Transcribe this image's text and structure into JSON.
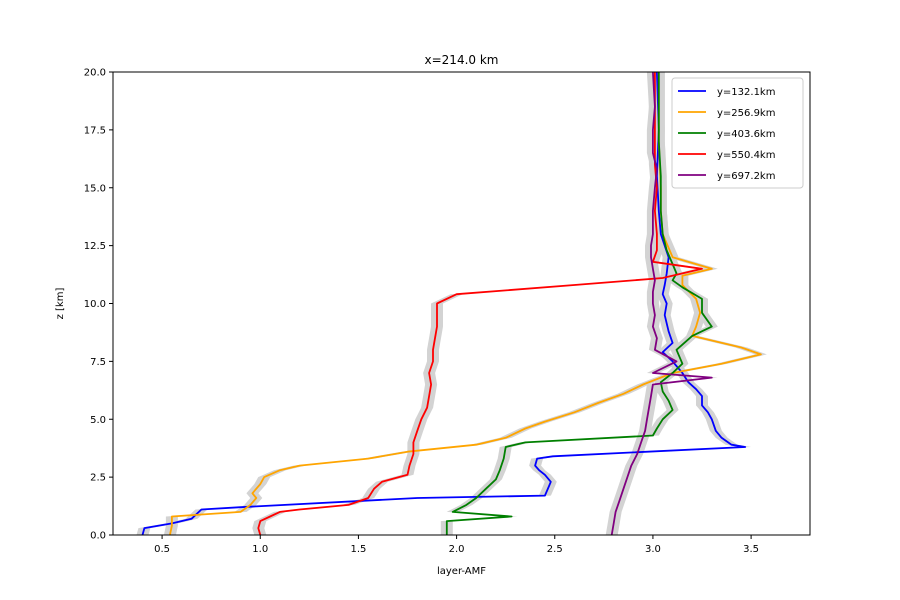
{
  "chart_data": {
    "type": "line",
    "title": "x=214.0 km",
    "xlabel": "layer-AMF",
    "ylabel": "z [km]",
    "xlim": [
      0.25,
      3.8
    ],
    "ylim": [
      0,
      20
    ],
    "xticks": [
      "0.5",
      "1.0",
      "1.5",
      "2.0",
      "2.5",
      "3.0",
      "3.5"
    ],
    "yticks": [
      "0.0",
      "2.5",
      "5.0",
      "7.5",
      "10.0",
      "12.5",
      "15.0",
      "17.5",
      "20.0"
    ],
    "legend_position": "top-right",
    "uncertainty_band_color": "#d3d3d3",
    "series": [
      {
        "name": "y=132.1km",
        "color": "#0000ff",
        "points": [
          [
            0.4,
            0.0
          ],
          [
            0.41,
            0.3
          ],
          [
            0.55,
            0.5
          ],
          [
            0.65,
            0.7
          ],
          [
            0.7,
            1.1
          ],
          [
            0.9,
            1.2
          ],
          [
            1.8,
            1.6
          ],
          [
            2.45,
            1.7
          ],
          [
            2.47,
            2.1
          ],
          [
            2.48,
            2.3
          ],
          [
            2.45,
            2.6
          ],
          [
            2.42,
            2.8
          ],
          [
            2.4,
            3.0
          ],
          [
            2.41,
            3.3
          ],
          [
            2.49,
            3.4
          ],
          [
            3.47,
            3.8
          ],
          [
            3.4,
            3.9
          ],
          [
            3.35,
            4.2
          ],
          [
            3.32,
            4.5
          ],
          [
            3.3,
            5.0
          ],
          [
            3.28,
            5.3
          ],
          [
            3.25,
            5.6
          ],
          [
            3.25,
            6.0
          ],
          [
            3.22,
            6.3
          ],
          [
            3.18,
            6.6
          ],
          [
            3.15,
            7.0
          ],
          [
            3.1,
            7.5
          ],
          [
            3.05,
            7.9
          ],
          [
            3.1,
            8.3
          ],
          [
            3.08,
            8.8
          ],
          [
            3.06,
            9.5
          ],
          [
            3.07,
            10.0
          ],
          [
            3.05,
            10.4
          ],
          [
            3.06,
            10.8
          ],
          [
            3.07,
            11.3
          ],
          [
            3.08,
            12.0
          ],
          [
            3.04,
            13.0
          ],
          [
            3.03,
            14.0
          ],
          [
            3.02,
            15.5
          ],
          [
            3.03,
            17.5
          ],
          [
            3.02,
            20.0
          ]
        ]
      },
      {
        "name": "y=256.9km",
        "color": "#ffa500",
        "points": [
          [
            0.54,
            0.0
          ],
          [
            0.55,
            0.4
          ],
          [
            0.55,
            0.8
          ],
          [
            0.9,
            1.0
          ],
          [
            0.95,
            1.3
          ],
          [
            0.98,
            1.6
          ],
          [
            0.96,
            1.8
          ],
          [
            0.98,
            2.0
          ],
          [
            1.0,
            2.2
          ],
          [
            1.02,
            2.5
          ],
          [
            1.1,
            2.8
          ],
          [
            1.2,
            3.0
          ],
          [
            1.55,
            3.3
          ],
          [
            1.75,
            3.6
          ],
          [
            2.1,
            3.9
          ],
          [
            2.25,
            4.2
          ],
          [
            2.35,
            4.6
          ],
          [
            2.45,
            4.9
          ],
          [
            2.6,
            5.3
          ],
          [
            2.72,
            5.7
          ],
          [
            2.85,
            6.1
          ],
          [
            2.95,
            6.5
          ],
          [
            3.1,
            7.0
          ],
          [
            3.35,
            7.4
          ],
          [
            3.55,
            7.8
          ],
          [
            3.45,
            8.1
          ],
          [
            3.2,
            8.6
          ],
          [
            3.22,
            9.0
          ],
          [
            3.24,
            9.6
          ],
          [
            3.22,
            10.2
          ],
          [
            3.15,
            10.8
          ],
          [
            3.15,
            11.2
          ],
          [
            3.3,
            11.5
          ],
          [
            3.1,
            12.0
          ],
          [
            3.05,
            13.0
          ],
          [
            3.04,
            14.0
          ],
          [
            3.04,
            15.0
          ],
          [
            3.03,
            17.0
          ],
          [
            3.03,
            20.0
          ]
        ]
      },
      {
        "name": "y=403.6km",
        "color": "#008000",
        "points": [
          [
            1.95,
            0.0
          ],
          [
            1.95,
            0.6
          ],
          [
            2.28,
            0.8
          ],
          [
            1.98,
            1.0
          ],
          [
            2.05,
            1.3
          ],
          [
            2.1,
            1.6
          ],
          [
            2.15,
            2.0
          ],
          [
            2.2,
            2.4
          ],
          [
            2.22,
            2.8
          ],
          [
            2.24,
            3.3
          ],
          [
            2.25,
            3.8
          ],
          [
            2.35,
            4.0
          ],
          [
            3.0,
            4.3
          ],
          [
            3.02,
            4.6
          ],
          [
            3.05,
            5.0
          ],
          [
            3.1,
            5.4
          ],
          [
            3.08,
            5.8
          ],
          [
            3.05,
            6.2
          ],
          [
            3.04,
            6.6
          ],
          [
            3.1,
            7.0
          ],
          [
            3.15,
            7.4
          ],
          [
            3.12,
            8.0
          ],
          [
            3.2,
            8.6
          ],
          [
            3.3,
            9.0
          ],
          [
            3.25,
            9.6
          ],
          [
            3.25,
            10.2
          ],
          [
            3.15,
            10.7
          ],
          [
            3.1,
            11.0
          ],
          [
            3.12,
            11.3
          ],
          [
            3.1,
            11.7
          ],
          [
            3.07,
            12.3
          ],
          [
            3.05,
            13.0
          ],
          [
            3.04,
            14.0
          ],
          [
            3.04,
            15.5
          ],
          [
            3.03,
            17.0
          ],
          [
            3.03,
            20.0
          ]
        ]
      },
      {
        "name": "y=550.4km",
        "color": "#ff0000",
        "points": [
          [
            1.0,
            0.0
          ],
          [
            0.99,
            0.3
          ],
          [
            1.0,
            0.6
          ],
          [
            1.05,
            0.8
          ],
          [
            1.1,
            1.0
          ],
          [
            1.2,
            1.1
          ],
          [
            1.45,
            1.3
          ],
          [
            1.55,
            1.6
          ],
          [
            1.58,
            2.0
          ],
          [
            1.62,
            2.3
          ],
          [
            1.75,
            2.6
          ],
          [
            1.76,
            3.0
          ],
          [
            1.78,
            3.5
          ],
          [
            1.78,
            4.0
          ],
          [
            1.8,
            4.5
          ],
          [
            1.82,
            5.0
          ],
          [
            1.85,
            5.5
          ],
          [
            1.86,
            6.0
          ],
          [
            1.87,
            6.5
          ],
          [
            1.86,
            7.0
          ],
          [
            1.88,
            7.5
          ],
          [
            1.88,
            8.0
          ],
          [
            1.89,
            8.5
          ],
          [
            1.9,
            9.0
          ],
          [
            1.9,
            9.5
          ],
          [
            1.9,
            10.0
          ],
          [
            2.0,
            10.4
          ],
          [
            2.6,
            10.8
          ],
          [
            3.05,
            11.1
          ],
          [
            3.25,
            11.5
          ],
          [
            3.0,
            11.8
          ],
          [
            3.02,
            12.3
          ],
          [
            3.02,
            13.0
          ],
          [
            3.01,
            14.0
          ],
          [
            3.02,
            15.0
          ],
          [
            3.01,
            16.0
          ],
          [
            3.01,
            17.5
          ],
          [
            3.01,
            20.0
          ]
        ]
      },
      {
        "name": "y=697.2km",
        "color": "#800080",
        "points": [
          [
            2.79,
            0.0
          ],
          [
            2.8,
            0.5
          ],
          [
            2.81,
            1.0
          ],
          [
            2.83,
            1.5
          ],
          [
            2.85,
            2.0
          ],
          [
            2.87,
            2.5
          ],
          [
            2.89,
            3.0
          ],
          [
            2.92,
            3.5
          ],
          [
            2.94,
            4.0
          ],
          [
            2.96,
            4.5
          ],
          [
            2.97,
            5.0
          ],
          [
            2.98,
            5.5
          ],
          [
            2.99,
            6.0
          ],
          [
            3.0,
            6.5
          ],
          [
            3.3,
            6.8
          ],
          [
            3.0,
            7.0
          ],
          [
            3.12,
            7.5
          ],
          [
            3.01,
            8.0
          ],
          [
            3.02,
            8.5
          ],
          [
            3.0,
            9.0
          ],
          [
            3.01,
            9.5
          ],
          [
            3.0,
            10.0
          ],
          [
            3.0,
            10.5
          ],
          [
            3.01,
            11.0
          ],
          [
            3.0,
            11.5
          ],
          [
            2.99,
            12.0
          ],
          [
            2.99,
            12.5
          ],
          [
            3.0,
            13.0
          ],
          [
            3.0,
            14.0
          ],
          [
            3.01,
            15.0
          ],
          [
            3.02,
            15.8
          ],
          [
            3.0,
            16.5
          ],
          [
            3.0,
            17.5
          ],
          [
            3.01,
            18.5
          ],
          [
            3.0,
            20.0
          ]
        ]
      }
    ]
  }
}
